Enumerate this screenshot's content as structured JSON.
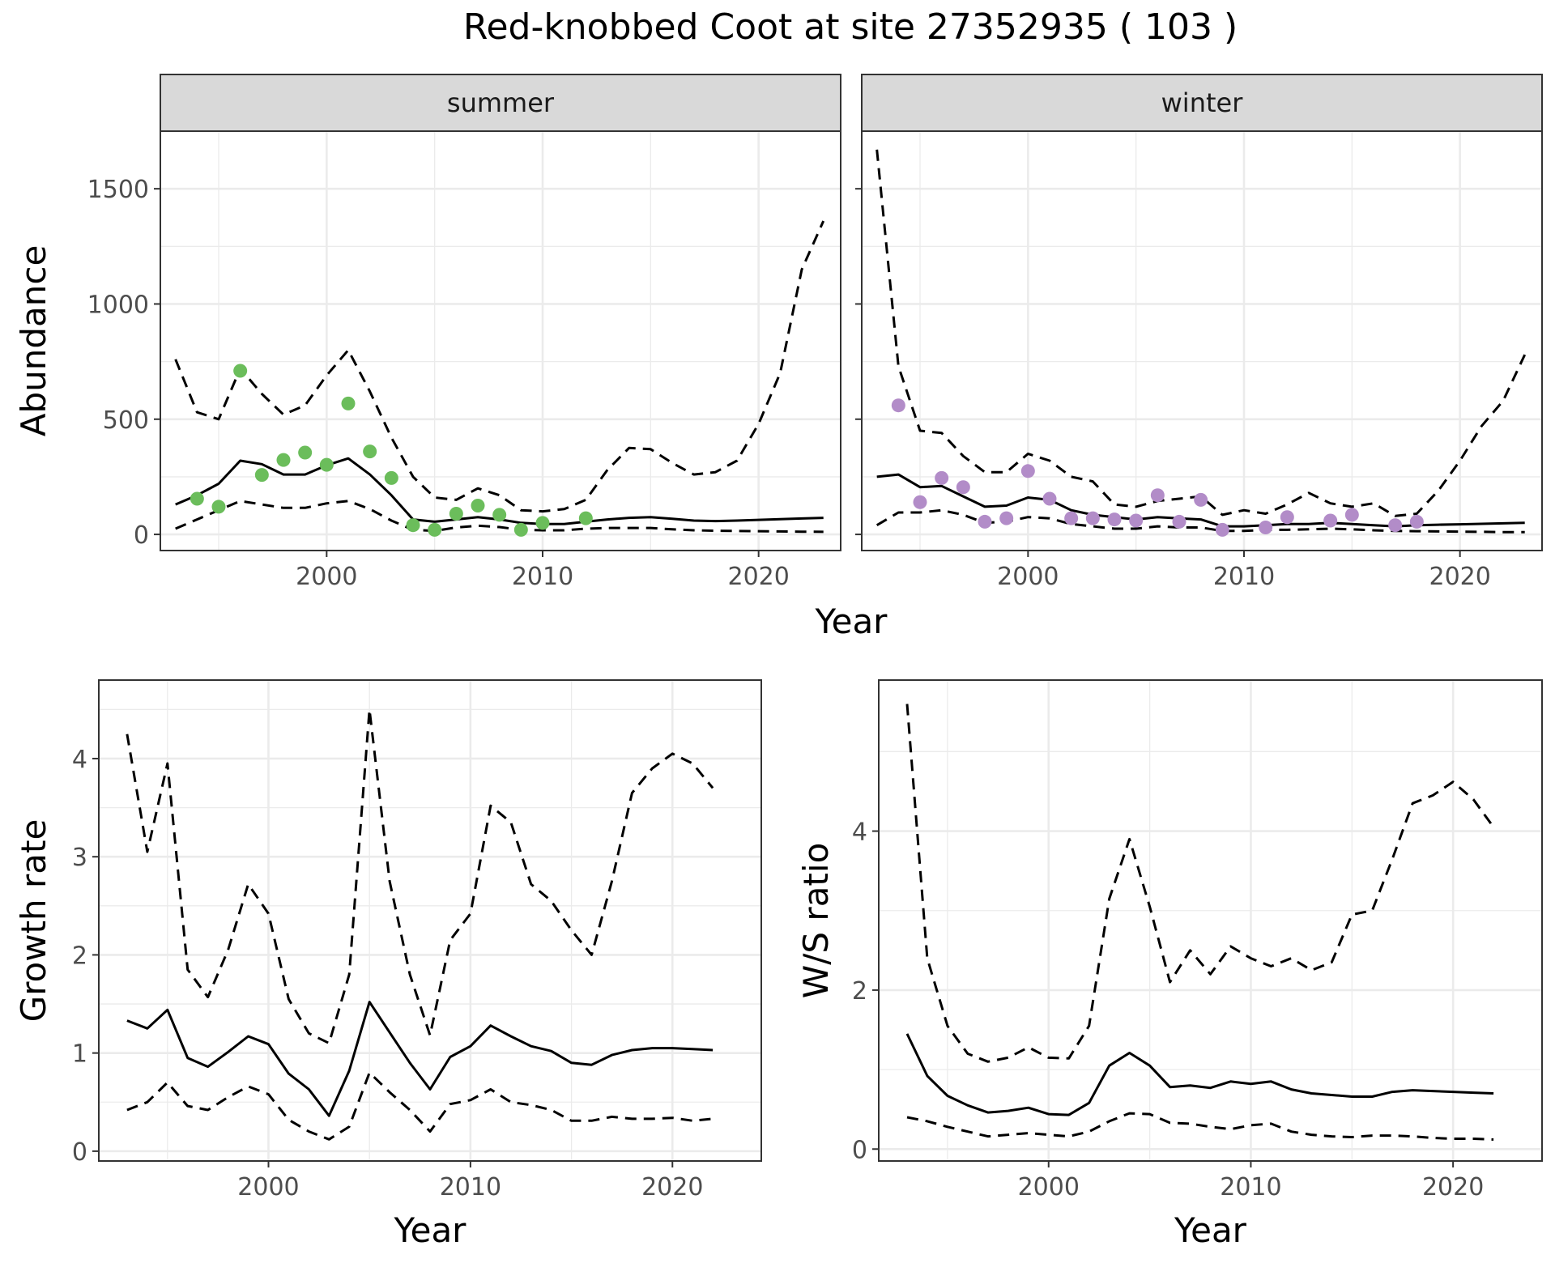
{
  "title": "Red-knobbed Coot at site 27352935 ( 103 )",
  "colors": {
    "summer_points": "#6bbd5b",
    "winter_points": "#b28cc8",
    "strip_fill": "#d9d9d9",
    "line": "#000000",
    "grid": "#ebebeb",
    "panel_border": "#333333"
  },
  "chart_data": [
    {
      "type": "line",
      "panel": "summer",
      "strip_label": "summer",
      "xlabel": "Year",
      "ylabel": "Abundance",
      "xlim": [
        1992.3,
        2023.8
      ],
      "ylim": [
        -70,
        1750
      ],
      "xticks": [
        2000,
        2010,
        2020
      ],
      "yticks": [
        0,
        500,
        1000,
        1500
      ],
      "grid": true,
      "series": [
        {
          "role": "estimate",
          "style": "solid",
          "x": [
            1993,
            1994,
            1995,
            1996,
            1997,
            1998,
            1999,
            2000,
            2001,
            2002,
            2003,
            2004,
            2005,
            2006,
            2007,
            2008,
            2009,
            2010,
            2011,
            2012,
            2013,
            2014,
            2015,
            2016,
            2017,
            2018,
            2019,
            2020,
            2021,
            2022,
            2023
          ],
          "y": [
            130,
            170,
            220,
            320,
            305,
            260,
            260,
            300,
            330,
            260,
            170,
            65,
            55,
            65,
            75,
            65,
            50,
            45,
            45,
            55,
            65,
            72,
            75,
            68,
            60,
            58,
            60,
            63,
            66,
            69,
            72
          ]
        },
        {
          "role": "upper",
          "style": "dashed",
          "x": [
            1993,
            1994,
            1995,
            1996,
            1997,
            1998,
            1999,
            2000,
            2001,
            2002,
            2003,
            2004,
            2005,
            2006,
            2007,
            2008,
            2009,
            2010,
            2011,
            2012,
            2013,
            2014,
            2015,
            2016,
            2017,
            2018,
            2019,
            2020,
            2021,
            2022,
            2023
          ],
          "y": [
            760,
            530,
            500,
            720,
            610,
            520,
            560,
            690,
            800,
            620,
            420,
            250,
            160,
            150,
            200,
            170,
            105,
            100,
            110,
            150,
            280,
            375,
            370,
            310,
            260,
            270,
            320,
            480,
            700,
            1150,
            1360
          ]
        },
        {
          "role": "lower",
          "style": "dashed",
          "x": [
            1993,
            1994,
            1995,
            1996,
            1997,
            1998,
            1999,
            2000,
            2001,
            2002,
            2003,
            2004,
            2005,
            2006,
            2007,
            2008,
            2009,
            2010,
            2011,
            2012,
            2013,
            2014,
            2015,
            2016,
            2017,
            2018,
            2019,
            2020,
            2021,
            2022,
            2023
          ],
          "y": [
            25,
            65,
            105,
            145,
            130,
            115,
            115,
            135,
            145,
            110,
            60,
            20,
            15,
            30,
            38,
            32,
            20,
            18,
            18,
            25,
            28,
            28,
            28,
            22,
            18,
            16,
            15,
            14,
            13,
            12,
            11
          ]
        },
        {
          "role": "observed",
          "style": "points",
          "x": [
            1994,
            1995,
            1996,
            1997,
            1998,
            1999,
            2000,
            2001,
            2002,
            2003,
            2004,
            2005,
            2006,
            2007,
            2008,
            2009,
            2010,
            2012
          ],
          "y": [
            155,
            120,
            710,
            258,
            323,
            355,
            302,
            568,
            360,
            245,
            40,
            20,
            90,
            125,
            85,
            20,
            50,
            70
          ]
        }
      ]
    },
    {
      "type": "line",
      "panel": "winter",
      "strip_label": "winter",
      "xlabel": "Year",
      "ylabel": "Abundance",
      "xlim": [
        1992.3,
        2023.8
      ],
      "ylim": [
        -70,
        1750
      ],
      "xticks": [
        2000,
        2010,
        2020
      ],
      "yticks": [
        0,
        500,
        1000,
        1500
      ],
      "grid": true,
      "series": [
        {
          "role": "estimate",
          "style": "solid",
          "x": [
            1993,
            1994,
            1995,
            1996,
            1997,
            1998,
            1999,
            2000,
            2001,
            2002,
            2003,
            2004,
            2005,
            2006,
            2007,
            2008,
            2009,
            2010,
            2011,
            2012,
            2013,
            2014,
            2015,
            2016,
            2017,
            2018,
            2019,
            2020,
            2021,
            2022,
            2023
          ],
          "y": [
            250,
            260,
            205,
            210,
            165,
            120,
            125,
            160,
            150,
            105,
            85,
            75,
            65,
            75,
            70,
            65,
            35,
            35,
            40,
            45,
            45,
            50,
            45,
            40,
            35,
            40,
            42,
            44,
            46,
            48,
            50
          ]
        },
        {
          "role": "upper",
          "style": "dashed",
          "x": [
            1993,
            1994,
            1995,
            1996,
            1997,
            1998,
            1999,
            2000,
            2001,
            2002,
            2003,
            2004,
            2005,
            2006,
            2007,
            2008,
            2009,
            2010,
            2011,
            2012,
            2013,
            2014,
            2015,
            2016,
            2017,
            2018,
            2019,
            2020,
            2021,
            2022,
            2023
          ],
          "y": [
            1670,
            730,
            450,
            440,
            340,
            270,
            270,
            350,
            320,
            250,
            230,
            130,
            120,
            145,
            155,
            165,
            85,
            105,
            90,
            130,
            180,
            135,
            120,
            135,
            80,
            90,
            190,
            320,
            470,
            580,
            780
          ]
        },
        {
          "role": "lower",
          "style": "dashed",
          "x": [
            1993,
            1994,
            1995,
            1996,
            1997,
            1998,
            1999,
            2000,
            2001,
            2002,
            2003,
            2004,
            2005,
            2006,
            2007,
            2008,
            2009,
            2010,
            2011,
            2012,
            2013,
            2014,
            2015,
            2016,
            2017,
            2018,
            2019,
            2020,
            2021,
            2022,
            2023
          ],
          "y": [
            40,
            95,
            95,
            105,
            85,
            50,
            55,
            75,
            70,
            45,
            35,
            25,
            25,
            35,
            30,
            30,
            15,
            15,
            20,
            20,
            22,
            25,
            22,
            18,
            15,
            14,
            13,
            12,
            11,
            10,
            10
          ]
        },
        {
          "role": "observed",
          "style": "points",
          "x": [
            1994,
            1995,
            1996,
            1997,
            1998,
            1999,
            2000,
            2001,
            2002,
            2003,
            2004,
            2005,
            2006,
            2007,
            2008,
            2009,
            2011,
            2012,
            2014,
            2015,
            2017,
            2018
          ],
          "y": [
            560,
            140,
            245,
            205,
            55,
            70,
            275,
            155,
            70,
            70,
            65,
            60,
            170,
            55,
            150,
            20,
            30,
            75,
            60,
            85,
            40,
            55
          ]
        }
      ]
    },
    {
      "type": "line",
      "panel": "growth",
      "xlabel": "Year",
      "ylabel": "Growth rate",
      "xlim": [
        1991.6,
        2024.4
      ],
      "ylim": [
        -0.1,
        4.8
      ],
      "xticks": [
        2000,
        2010,
        2020
      ],
      "yticks": [
        0,
        1,
        2,
        3,
        4
      ],
      "grid": true,
      "series": [
        {
          "role": "estimate",
          "style": "solid",
          "x": [
            1993,
            1994,
            1995,
            1996,
            1997,
            1998,
            1999,
            2000,
            2001,
            2002,
            2003,
            2004,
            2005,
            2006,
            2007,
            2008,
            2009,
            2010,
            2011,
            2012,
            2013,
            2014,
            2015,
            2016,
            2017,
            2018,
            2019,
            2020,
            2021,
            2022
          ],
          "y": [
            1.33,
            1.25,
            1.44,
            0.95,
            0.86,
            1.01,
            1.17,
            1.09,
            0.79,
            0.63,
            0.36,
            0.82,
            1.52,
            1.21,
            0.9,
            0.63,
            0.96,
            1.07,
            1.28,
            1.17,
            1.07,
            1.02,
            0.9,
            0.88,
            0.98,
            1.03,
            1.05,
            1.05,
            1.04,
            1.03
          ]
        },
        {
          "role": "upper",
          "style": "dashed",
          "x": [
            1993,
            1994,
            1995,
            1996,
            1997,
            1998,
            1999,
            2000,
            2001,
            2002,
            2003,
            2004,
            2005,
            2006,
            2007,
            2008,
            2009,
            2010,
            2011,
            2012,
            2013,
            2014,
            2015,
            2016,
            2017,
            2018,
            2019,
            2020,
            2021,
            2022
          ],
          "y": [
            4.25,
            3.05,
            3.95,
            1.85,
            1.57,
            2.05,
            2.72,
            2.42,
            1.55,
            1.2,
            1.1,
            1.8,
            4.5,
            2.75,
            1.8,
            1.18,
            2.15,
            2.42,
            3.52,
            3.35,
            2.72,
            2.55,
            2.25,
            2.0,
            2.75,
            3.65,
            3.9,
            4.05,
            3.95,
            3.7
          ]
        },
        {
          "role": "lower",
          "style": "dashed",
          "x": [
            1993,
            1994,
            1995,
            1996,
            1997,
            1998,
            1999,
            2000,
            2001,
            2002,
            2003,
            2004,
            2005,
            2006,
            2007,
            2008,
            2009,
            2010,
            2011,
            2012,
            2013,
            2014,
            2015,
            2016,
            2017,
            2018,
            2019,
            2020,
            2021,
            2022
          ],
          "y": [
            0.42,
            0.5,
            0.7,
            0.46,
            0.42,
            0.55,
            0.66,
            0.58,
            0.32,
            0.2,
            0.12,
            0.25,
            0.8,
            0.6,
            0.42,
            0.2,
            0.48,
            0.52,
            0.63,
            0.5,
            0.47,
            0.42,
            0.31,
            0.31,
            0.35,
            0.33,
            0.33,
            0.34,
            0.31,
            0.33
          ]
        }
      ]
    },
    {
      "type": "line",
      "panel": "ws_ratio",
      "xlabel": "Year",
      "ylabel": "W/S ratio",
      "xlim": [
        1991.6,
        2024.4
      ],
      "ylim": [
        -0.15,
        5.9
      ],
      "xticks": [
        2000,
        2010,
        2020
      ],
      "yticks": [
        0,
        2,
        4
      ],
      "grid": true,
      "series": [
        {
          "role": "estimate",
          "style": "solid",
          "x": [
            1993,
            1994,
            1995,
            1996,
            1997,
            1998,
            1999,
            2000,
            2001,
            2002,
            2003,
            2004,
            2005,
            2006,
            2007,
            2008,
            2009,
            2010,
            2011,
            2012,
            2013,
            2014,
            2015,
            2016,
            2017,
            2018,
            2019,
            2020,
            2021,
            2022
          ],
          "y": [
            1.45,
            0.92,
            0.67,
            0.55,
            0.46,
            0.48,
            0.52,
            0.44,
            0.43,
            0.58,
            1.05,
            1.21,
            1.05,
            0.78,
            0.8,
            0.77,
            0.85,
            0.82,
            0.85,
            0.75,
            0.7,
            0.68,
            0.66,
            0.66,
            0.72,
            0.74,
            0.73,
            0.72,
            0.71,
            0.7
          ]
        },
        {
          "role": "upper",
          "style": "dashed",
          "x": [
            1993,
            1994,
            1995,
            1996,
            1997,
            1998,
            1999,
            2000,
            2001,
            2002,
            2003,
            2004,
            2005,
            2006,
            2007,
            2008,
            2009,
            2010,
            2011,
            2012,
            2013,
            2014,
            2015,
            2016,
            2017,
            2018,
            2019,
            2020,
            2021,
            2022
          ],
          "y": [
            5.6,
            2.4,
            1.55,
            1.2,
            1.1,
            1.15,
            1.28,
            1.15,
            1.14,
            1.55,
            3.15,
            3.9,
            3.05,
            2.1,
            2.5,
            2.2,
            2.55,
            2.4,
            2.3,
            2.4,
            2.25,
            2.35,
            2.95,
            3.0,
            3.65,
            4.35,
            4.45,
            4.62,
            4.4,
            4.05
          ]
        },
        {
          "role": "lower",
          "style": "dashed",
          "x": [
            1993,
            1994,
            1995,
            1996,
            1997,
            1998,
            1999,
            2000,
            2001,
            2002,
            2003,
            2004,
            2005,
            2006,
            2007,
            2008,
            2009,
            2010,
            2011,
            2012,
            2013,
            2014,
            2015,
            2016,
            2017,
            2018,
            2019,
            2020,
            2021,
            2022
          ],
          "y": [
            0.4,
            0.35,
            0.28,
            0.22,
            0.16,
            0.18,
            0.2,
            0.18,
            0.16,
            0.22,
            0.35,
            0.45,
            0.44,
            0.33,
            0.32,
            0.28,
            0.25,
            0.3,
            0.32,
            0.22,
            0.18,
            0.16,
            0.15,
            0.17,
            0.17,
            0.16,
            0.14,
            0.13,
            0.13,
            0.12
          ]
        }
      ]
    }
  ]
}
